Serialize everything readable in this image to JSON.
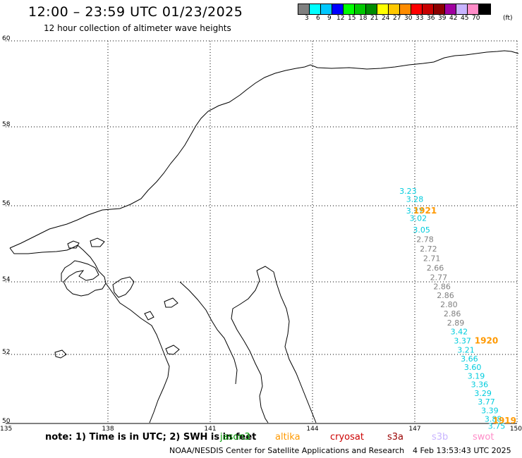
{
  "header": {
    "title": "12:00 – 23:59 UTC 01/23/2025",
    "subtitle": "12 hour collection of altimeter wave heights"
  },
  "colorbar": {
    "unit": "(ft)",
    "colors": [
      "#808080",
      "#00ffff",
      "#00c8ff",
      "#0000ff",
      "#00ff00",
      "#00c800",
      "#008c00",
      "#ffff00",
      "#ffc800",
      "#ff8c00",
      "#ff0000",
      "#c80000",
      "#8c0000",
      "#a000a0",
      "#c8b4ff",
      "#ff8cc8",
      "#000000"
    ],
    "labels": [
      "3",
      "6",
      "9",
      "12",
      "15",
      "18",
      "21",
      "24",
      "27",
      "30",
      "33",
      "36",
      "39",
      "42",
      "45",
      "70"
    ]
  },
  "map": {
    "lon_range": [
      135,
      150
    ],
    "lat_range": [
      50,
      60
    ],
    "lon_ticks": [
      "135",
      "138",
      "141",
      "144",
      "147",
      "150"
    ],
    "lat_ticks": [
      "60",
      "58",
      "56",
      "54",
      "52",
      "50"
    ],
    "grid": true
  },
  "chart_data": {
    "type": "scatter",
    "title": "12:00 – 23:59 UTC 01/23/2025",
    "subtitle": "12 hour collection of altimeter wave heights",
    "xlim": [
      135,
      150
    ],
    "ylim": [
      50,
      60
    ],
    "unit": "ft",
    "series": [
      {
        "satellite": "cyan",
        "points": [
          {
            "lon": 146.8,
            "lat": 56.3,
            "value": "3.23",
            "color": "#00ccdd"
          },
          {
            "lon": 147.0,
            "lat": 56.1,
            "value": "3.28",
            "color": "#00ccdd"
          },
          {
            "lon": 147.0,
            "lat": 55.8,
            "value": "3.27",
            "color": "#00ccdd"
          },
          {
            "lon": 147.1,
            "lat": 55.6,
            "value": "3.02",
            "color": "#00ccdd"
          },
          {
            "lon": 147.2,
            "lat": 55.3,
            "value": "3.05",
            "color": "#00ccdd"
          }
        ]
      },
      {
        "satellite": "gray",
        "points": [
          {
            "lon": 147.3,
            "lat": 55.05,
            "value": "2.78",
            "color": "#808080"
          },
          {
            "lon": 147.4,
            "lat": 54.8,
            "value": "2.72",
            "color": "#808080"
          },
          {
            "lon": 147.5,
            "lat": 54.55,
            "value": "2.71",
            "color": "#808080"
          },
          {
            "lon": 147.6,
            "lat": 54.3,
            "value": "2.66",
            "color": "#808080"
          },
          {
            "lon": 147.7,
            "lat": 54.05,
            "value": "2.77",
            "color": "#808080"
          },
          {
            "lon": 147.8,
            "lat": 53.8,
            "value": "2.86",
            "color": "#808080"
          },
          {
            "lon": 147.9,
            "lat": 53.55,
            "value": "2.86",
            "color": "#808080"
          },
          {
            "lon": 148.0,
            "lat": 53.3,
            "value": "2.80",
            "color": "#808080"
          },
          {
            "lon": 148.1,
            "lat": 53.05,
            "value": "2.86",
            "color": "#808080"
          },
          {
            "lon": 148.2,
            "lat": 52.8,
            "value": "2.89",
            "color": "#808080"
          }
        ]
      },
      {
        "satellite": "cyan",
        "points": [
          {
            "lon": 148.3,
            "lat": 52.55,
            "value": "3.42",
            "color": "#00ccdd"
          },
          {
            "lon": 148.4,
            "lat": 52.3,
            "value": "3.37",
            "color": "#00ccdd"
          },
          {
            "lon": 148.5,
            "lat": 52.05,
            "value": "3.21",
            "color": "#00ccdd"
          },
          {
            "lon": 148.6,
            "lat": 51.8,
            "value": "3.66",
            "color": "#00ccdd"
          },
          {
            "lon": 148.7,
            "lat": 51.55,
            "value": "3.60",
            "color": "#00ccdd"
          },
          {
            "lon": 148.8,
            "lat": 51.3,
            "value": "3.19",
            "color": "#00ccdd"
          },
          {
            "lon": 148.9,
            "lat": 51.05,
            "value": "3.36",
            "color": "#00ccdd"
          },
          {
            "lon": 149.0,
            "lat": 50.8,
            "value": "3.29",
            "color": "#00ccdd"
          },
          {
            "lon": 149.1,
            "lat": 50.55,
            "value": "3.77",
            "color": "#00ccdd"
          },
          {
            "lon": 149.2,
            "lat": 50.3,
            "value": "3.39",
            "color": "#00ccdd"
          },
          {
            "lon": 149.3,
            "lat": 50.05,
            "value": "3.88",
            "color": "#00ccdd"
          },
          {
            "lon": 149.4,
            "lat": 49.85,
            "value": "3.75",
            "color": "#00ccdd"
          }
        ]
      }
    ],
    "time_labels": [
      {
        "lon": 147.3,
        "lat": 55.8,
        "text": "1921",
        "color": "#ff9900"
      },
      {
        "lon": 149.1,
        "lat": 52.3,
        "text": "1920",
        "color": "#ff9900"
      },
      {
        "lon": 150.4,
        "lat": 50.0,
        "text": "1919",
        "color": "#ff9900"
      }
    ]
  },
  "footer": {
    "note": "note:  1) Time is in UTC; 2) SWH is in feet",
    "satellites": [
      {
        "name": "jason3",
        "color": "#009900"
      },
      {
        "name": "altika",
        "color": "#ff9900"
      },
      {
        "name": "cryosat",
        "color": "#cc0000"
      },
      {
        "name": "s3a",
        "color": "#990000"
      },
      {
        "name": "s3b",
        "color": "#c8b4ff"
      },
      {
        "name": "swot",
        "color": "#ff8cc8"
      }
    ],
    "credit": "NOAA/NESDIS Center for Satellite Applications and Research",
    "timestamp": "4 Feb 13:53:43 UTC 2025"
  }
}
